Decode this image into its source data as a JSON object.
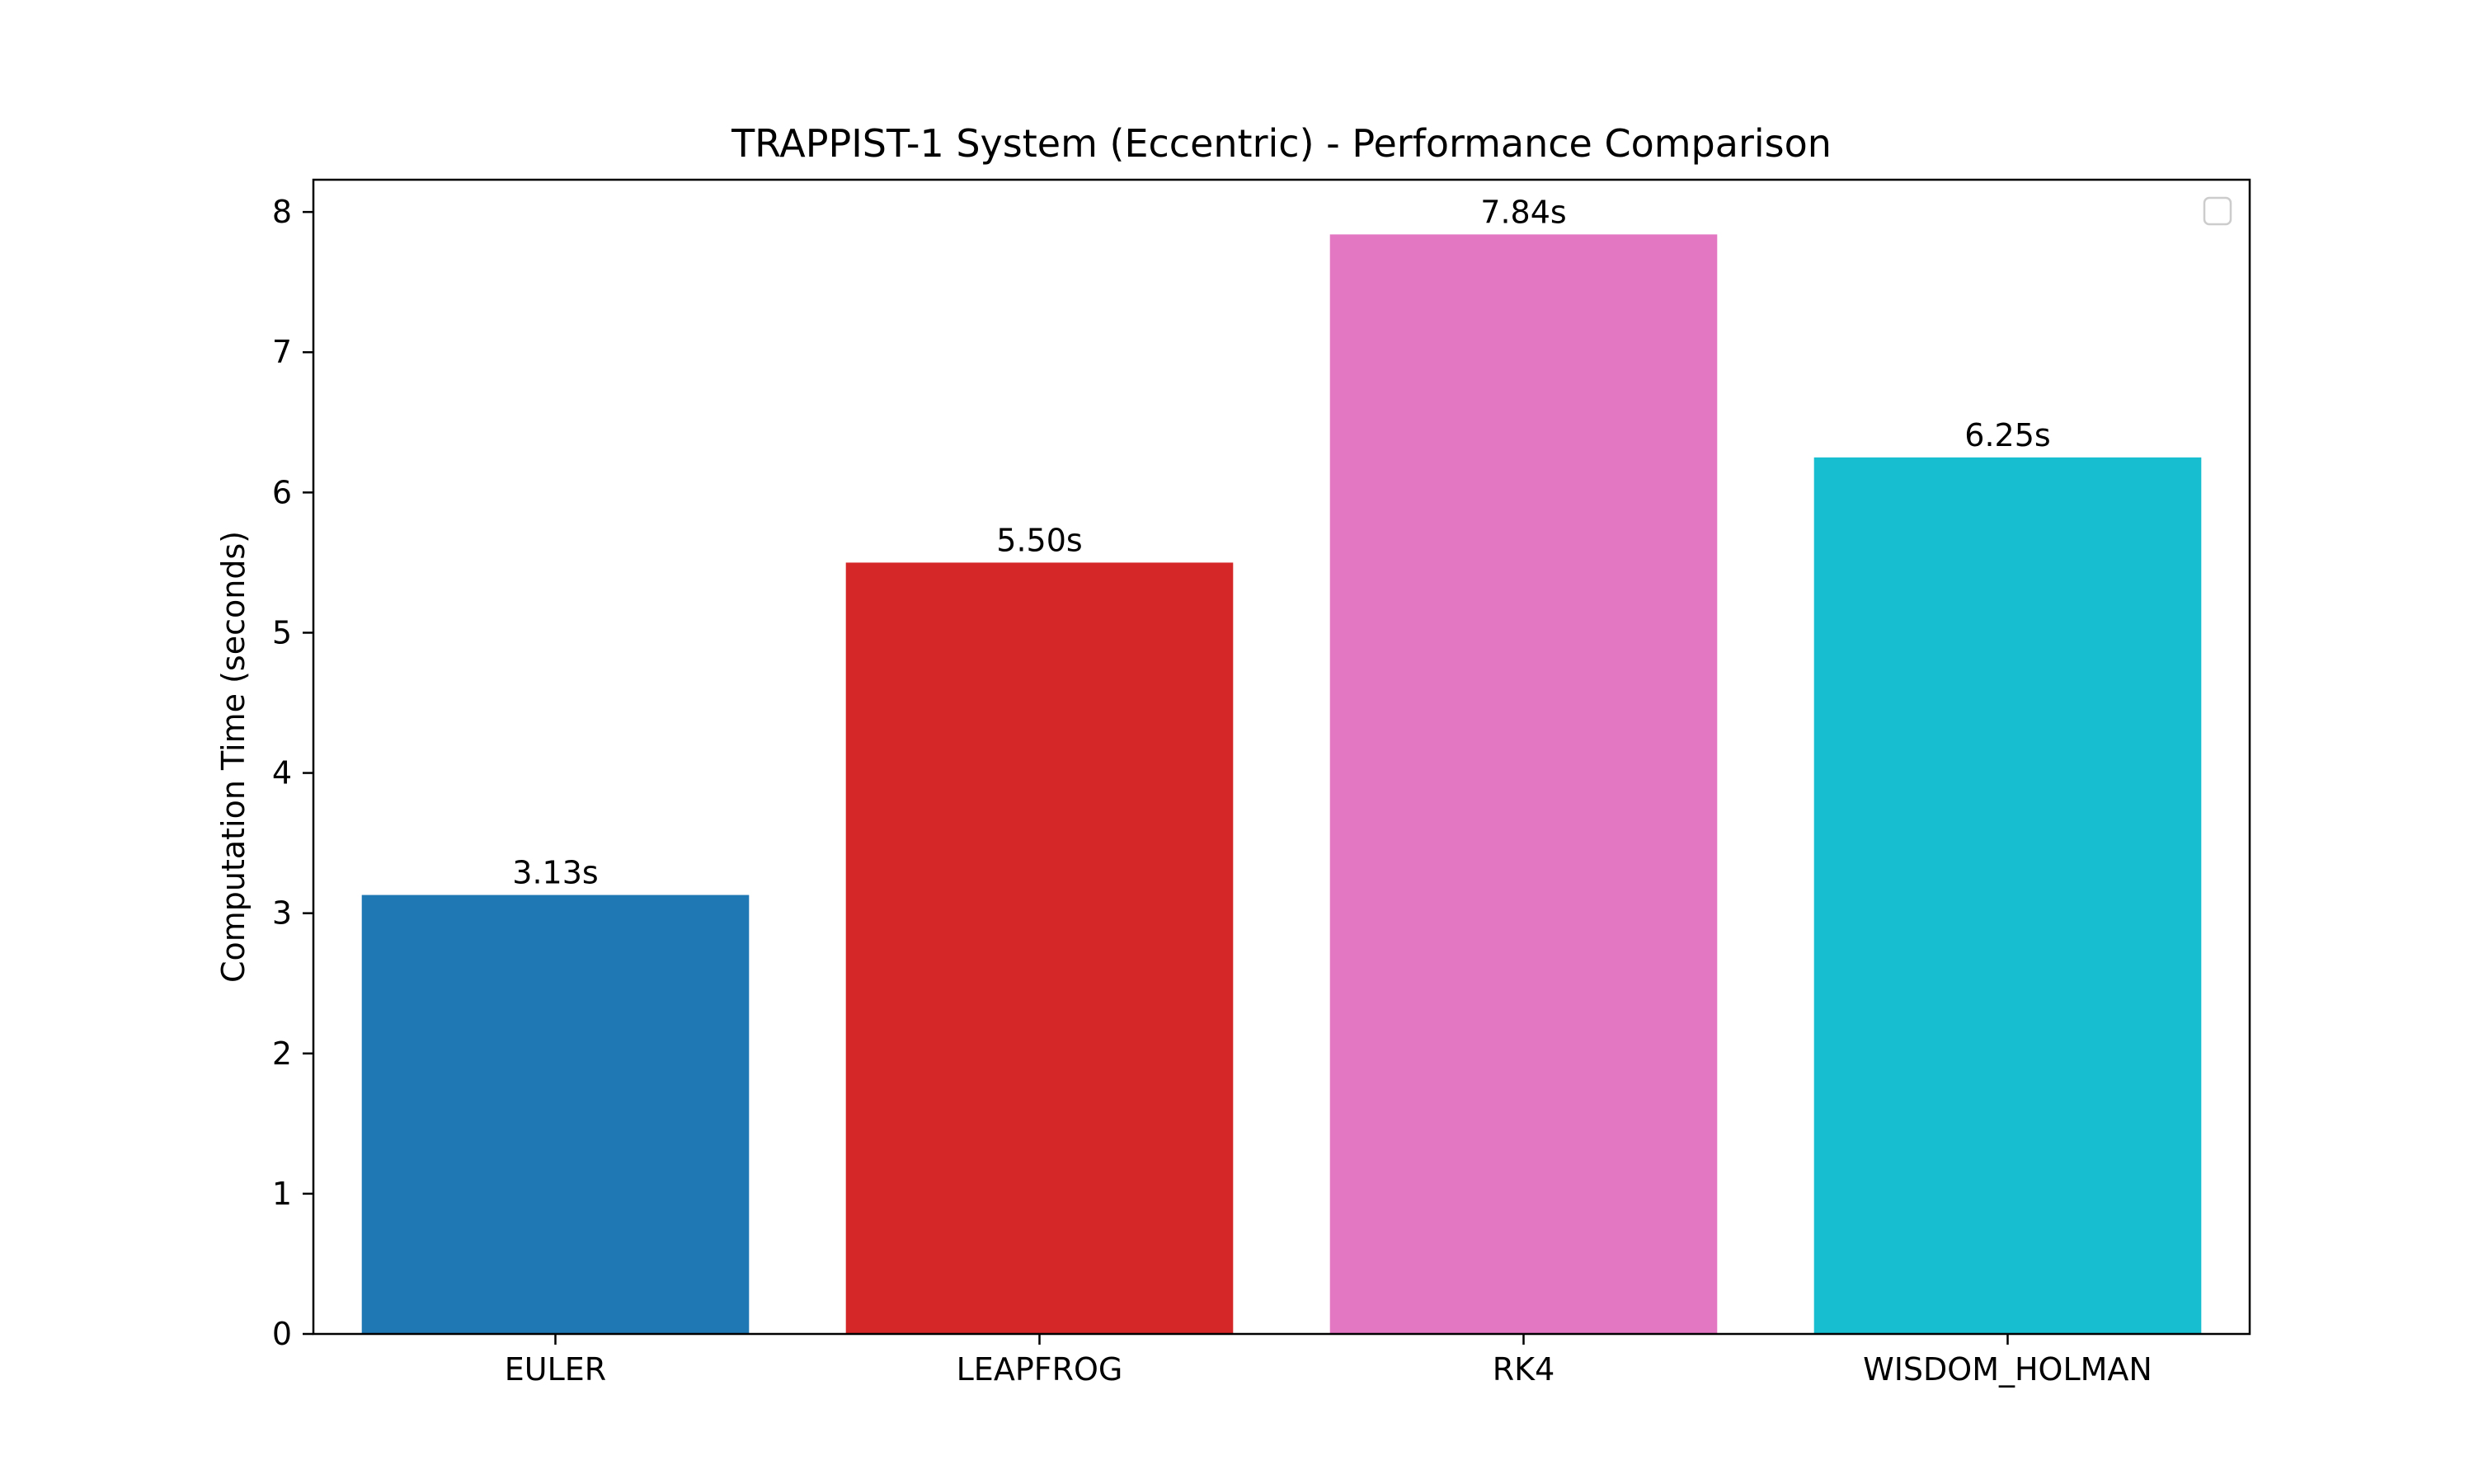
{
  "chart_data": {
    "type": "bar",
    "title": "TRAPPIST-1 System (Eccentric) - Performance Comparison",
    "xlabel": "",
    "ylabel": "Computation Time (seconds)",
    "categories": [
      "EULER",
      "LEAPFROG",
      "RK4",
      "WISDOM_HOLMAN"
    ],
    "values": [
      3.13,
      5.5,
      7.84,
      6.25
    ],
    "data_labels": [
      "3.13s",
      "5.50s",
      "7.84s",
      "6.25s"
    ],
    "colors": [
      "#1f77b4",
      "#d62728",
      "#e377c2",
      "#17becf"
    ],
    "ylim": [
      0,
      8.23
    ],
    "yticks": [
      0,
      1,
      2,
      3,
      4,
      5,
      6,
      7,
      8
    ],
    "grid": false,
    "legend": {
      "placement": "top-right",
      "entries": []
    }
  }
}
